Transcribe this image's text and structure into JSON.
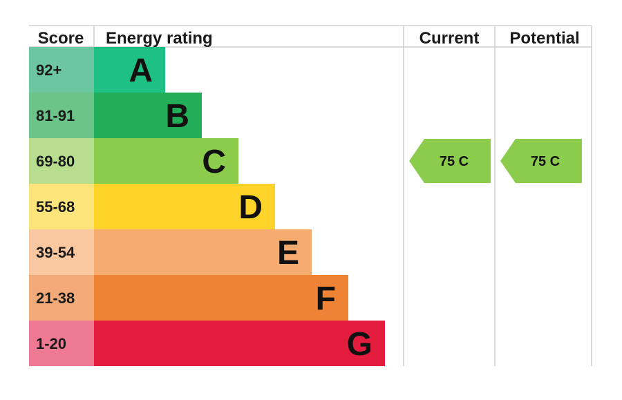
{
  "chart_data": {
    "type": "bar",
    "headers": {
      "score": "Score",
      "rating": "Energy rating",
      "current": "Current",
      "potential": "Potential"
    },
    "bands": [
      {
        "score": "92+",
        "letter": "A",
        "color": "#1fc083",
        "score_bg": "#6cc6a1"
      },
      {
        "score": "81-91",
        "letter": "B",
        "color": "#22ae58",
        "score_bg": "#6dc48a"
      },
      {
        "score": "69-80",
        "letter": "C",
        "color": "#8ccc4c",
        "score_bg": "#b6de8e"
      },
      {
        "score": "55-68",
        "letter": "D",
        "color": "#fed32a",
        "score_bg": "#fde57b"
      },
      {
        "score": "39-54",
        "letter": "E",
        "color": "#f7ac6f",
        "score_bg": "#f9c8a0"
      },
      {
        "score": "21-38",
        "letter": "F",
        "color": "#ee8335",
        "score_bg": "#f2ab78"
      },
      {
        "score": "1-20",
        "letter": "G",
        "color": "#e41d3f",
        "score_bg": "#ed7a92"
      }
    ],
    "current": {
      "value": 75,
      "letter": "C",
      "label": "75  C",
      "color": "#8ccc4c"
    },
    "potential": {
      "value": 75,
      "letter": "C",
      "label": "75  C",
      "color": "#8ccc4c"
    }
  }
}
